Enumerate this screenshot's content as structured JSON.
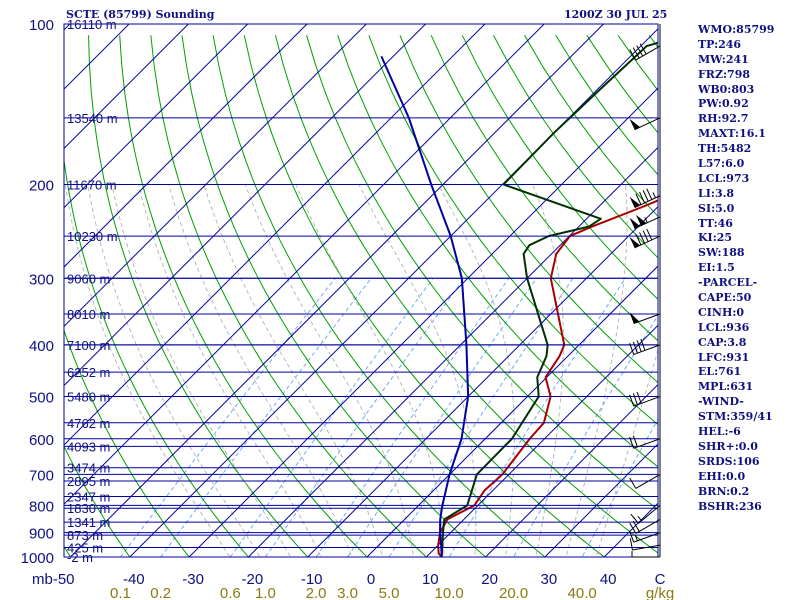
{
  "header": {
    "station": "SCTE (85799) Sounding",
    "time": "1200Z 30 JUL 25"
  },
  "indices": [
    "WMO:85799",
    "TP:246",
    "MW:241",
    "FRZ:798",
    "WB0:803",
    "PW:0.92",
    "RH:92.7",
    "MAXT:16.1",
    "TH:5482",
    "L57:6.0",
    "LCL:973",
    "LI:3.8",
    "SI:5.0",
    "TT:46",
    "KI:25",
    "SW:188",
    "EI:1.5",
    "-PARCEL-",
    "CAPE:50",
    "CINH:0",
    "LCL:936",
    "CAP:3.8",
    "LFC:931",
    "EL:761",
    "MPL:631",
    "-WIND-",
    "STM:359/41",
    "HEL:-6",
    "SHR+:0.0",
    "SRDS:106",
    "EHI:0.0",
    "BRN:0.2",
    "BSHR:236"
  ],
  "chart_data": {
    "type": "line",
    "subtype": "skew-T log-p sounding",
    "y_axis": {
      "unit": "mb",
      "scale": "log",
      "range": [
        1000,
        100
      ],
      "ticks": [
        100,
        200,
        300,
        400,
        500,
        600,
        700,
        800,
        900,
        1000
      ],
      "tick_labels": [
        "100",
        "200",
        "300",
        "400",
        "500",
        "600",
        "700",
        "800",
        "900",
        "1000"
      ]
    },
    "x_axis": {
      "unit": "C",
      "range": [
        -50,
        50
      ],
      "ticks": [
        -50,
        -40,
        -30,
        -20,
        -10,
        0,
        10,
        20,
        30,
        40,
        50
      ],
      "tick_labels": [
        "mb-50",
        "-40",
        "-30",
        "-20",
        "-10",
        "0",
        "10",
        "20",
        "30",
        "40",
        "C"
      ]
    },
    "mixing_ratio_axis": {
      "unit": "g/kg",
      "unit_label": "g/kg",
      "labels": [
        {
          "label": "0.1",
          "value": 0.1
        },
        {
          "label": "0.2",
          "value": 0.2
        },
        {
          "label": "0.6",
          "value": 0.6
        },
        {
          "label": "1.0",
          "value": 1.0
        },
        {
          "label": "2.0",
          "value": 2.0
        },
        {
          "label": "3.0",
          "value": 3.0
        },
        {
          "label": "5.0",
          "value": 5.0
        },
        {
          "label": "10.0",
          "value": 10.0
        },
        {
          "label": "20.0",
          "value": 20.0
        },
        {
          "label": "40.0",
          "value": 40.0
        }
      ]
    },
    "height_levels": [
      {
        "p": 100,
        "label": "16110 m"
      },
      {
        "p": 150,
        "label": "13540 m"
      },
      {
        "p": 200,
        "label": "11670 m"
      },
      {
        "p": 250,
        "label": "10230 m"
      },
      {
        "p": 300,
        "label": "9060 m"
      },
      {
        "p": 350,
        "label": "8010 m"
      },
      {
        "p": 400,
        "label": "7100 m"
      },
      {
        "p": 450,
        "label": "6252 m"
      },
      {
        "p": 500,
        "label": "5480 m"
      },
      {
        "p": 560,
        "label": "4762 m"
      },
      {
        "p": 620,
        "label": "4093 m"
      },
      {
        "p": 680,
        "label": "3474 m"
      },
      {
        "p": 720,
        "label": "2895 m"
      },
      {
        "p": 770,
        "label": "2347 m"
      },
      {
        "p": 810,
        "label": "1830 m"
      },
      {
        "p": 860,
        "label": "1341 m"
      },
      {
        "p": 910,
        "label": "873 m"
      },
      {
        "p": 960,
        "label": "425 m"
      },
      {
        "p": 1000,
        "label": "-2 m"
      }
    ],
    "grid": true,
    "series": [
      {
        "role": "temperature",
        "color": "#aa0000",
        "points": [
          {
            "p": 1000,
            "t": 12.6
          },
          {
            "p": 985,
            "t": 11.5
          },
          {
            "p": 950,
            "t": 10.0
          },
          {
            "p": 900,
            "t": 8.2
          },
          {
            "p": 850,
            "t": 7.2
          },
          {
            "p": 800,
            "t": 9.4
          },
          {
            "p": 750,
            "t": 8.6
          },
          {
            "p": 700,
            "t": 8.9
          },
          {
            "p": 600,
            "t": 7.5
          },
          {
            "p": 560,
            "t": 7.2
          },
          {
            "p": 500,
            "t": 3.9
          },
          {
            "p": 460,
            "t": -0.2
          },
          {
            "p": 420,
            "t": -1.4
          },
          {
            "p": 400,
            "t": -2.5
          },
          {
            "p": 300,
            "t": -16.0
          },
          {
            "p": 270,
            "t": -19.2
          },
          {
            "p": 250,
            "t": -19.9
          },
          {
            "p": 240,
            "t": -17.8
          },
          {
            "p": 220,
            "t": -12.5
          },
          {
            "p": 200,
            "t": -7.2
          },
          {
            "p": 160,
            "t": 1.5
          },
          {
            "p": 145,
            "t": -1.0
          },
          {
            "p": 120,
            "t": -1.4
          },
          {
            "p": 110,
            "t": 2.5
          },
          {
            "p": 103,
            "t": 2.0
          }
        ]
      },
      {
        "role": "dewpoint",
        "color": "#003000",
        "points": [
          {
            "p": 1000,
            "t": 12.6
          },
          {
            "p": 950,
            "t": 10.7
          },
          {
            "p": 900,
            "t": 8.7
          },
          {
            "p": 850,
            "t": 6.7
          },
          {
            "p": 800,
            "t": 8.2
          },
          {
            "p": 700,
            "t": 4.6
          },
          {
            "p": 600,
            "t": 4.5
          },
          {
            "p": 500,
            "t": 1.9
          },
          {
            "p": 460,
            "t": -1.6
          },
          {
            "p": 420,
            "t": -3.6
          },
          {
            "p": 400,
            "t": -5.3
          },
          {
            "p": 300,
            "t": -20.0
          },
          {
            "p": 270,
            "t": -24.7
          },
          {
            "p": 260,
            "t": -25.2
          },
          {
            "p": 250,
            "t": -23.5
          },
          {
            "p": 240,
            "t": -18.3
          },
          {
            "p": 232,
            "t": -17.6
          },
          {
            "p": 200,
            "t": -39.8
          },
          {
            "p": 160,
            "t": -40.0
          },
          {
            "p": 130,
            "t": -39.5
          },
          {
            "p": 110,
            "t": -39.0
          },
          {
            "p": 102,
            "t": -31.8
          }
        ]
      },
      {
        "role": "parcel",
        "color": "#0000a0",
        "points": [
          {
            "p": 1000,
            "t": 12.6
          },
          {
            "p": 950,
            "t": 10.5
          },
          {
            "p": 900,
            "t": 8.2
          },
          {
            "p": 850,
            "t": 6.0
          },
          {
            "p": 800,
            "t": 4.0
          },
          {
            "p": 700,
            "t": 0.0
          },
          {
            "p": 600,
            "t": -4.0
          },
          {
            "p": 500,
            "t": -10.0
          },
          {
            "p": 400,
            "t": -19.0
          },
          {
            "p": 300,
            "t": -31.0
          },
          {
            "p": 250,
            "t": -40.0
          },
          {
            "p": 200,
            "t": -52.0
          },
          {
            "p": 150,
            "t": -67.0
          },
          {
            "p": 115,
            "t": -82.0
          }
        ]
      }
    ],
    "wind_barbs": [
      {
        "p": 1000,
        "dir": 270,
        "spd": 5
      },
      {
        "p": 950,
        "dir": 260,
        "spd": 10
      },
      {
        "p": 900,
        "dir": 250,
        "spd": 15
      },
      {
        "p": 850,
        "dir": 240,
        "spd": 20
      },
      {
        "p": 800,
        "dir": 230,
        "spd": 15
      },
      {
        "p": 700,
        "dir": 240,
        "spd": 10
      },
      {
        "p": 600,
        "dir": 250,
        "spd": 20
      },
      {
        "p": 500,
        "dir": 250,
        "spd": 30
      },
      {
        "p": 400,
        "dir": 250,
        "spd": 40
      },
      {
        "p": 350,
        "dir": 250,
        "spd": 50
      },
      {
        "p": 250,
        "dir": 245,
        "spd": 90
      },
      {
        "p": 230,
        "dir": 245,
        "spd": 105
      },
      {
        "p": 210,
        "dir": 245,
        "spd": 95
      },
      {
        "p": 150,
        "dir": 245,
        "spd": 50
      },
      {
        "p": 110,
        "dir": 240,
        "spd": 40
      }
    ],
    "colors": {
      "isobar": "#0000a0",
      "isotherm": "#0000a0",
      "dry_adiabat": "#00a000",
      "moist_adiabat": "#d0d0d0",
      "mixing_ratio": "#6fa8ff",
      "text": "#101080",
      "mr_label": "#8a7a10",
      "wind_barb": "#000000"
    }
  }
}
